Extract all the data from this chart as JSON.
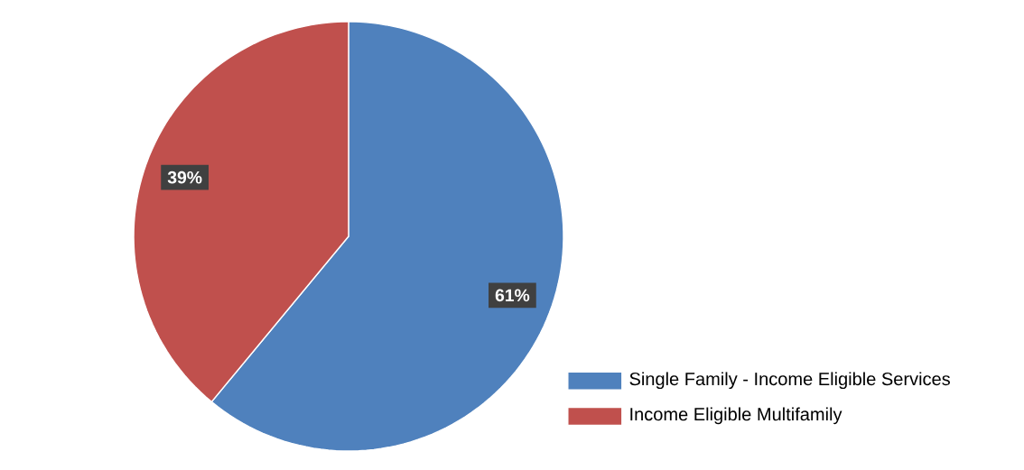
{
  "chart_data": {
    "type": "pie",
    "categories": [
      "Single Family - Income Eligible Services",
      "Income Eligible Multifamily"
    ],
    "values": [
      61,
      39
    ],
    "colors": [
      "#4f81bd",
      "#c0504d"
    ],
    "value_labels": [
      "61%",
      "39%"
    ],
    "legend": "bottom right"
  }
}
